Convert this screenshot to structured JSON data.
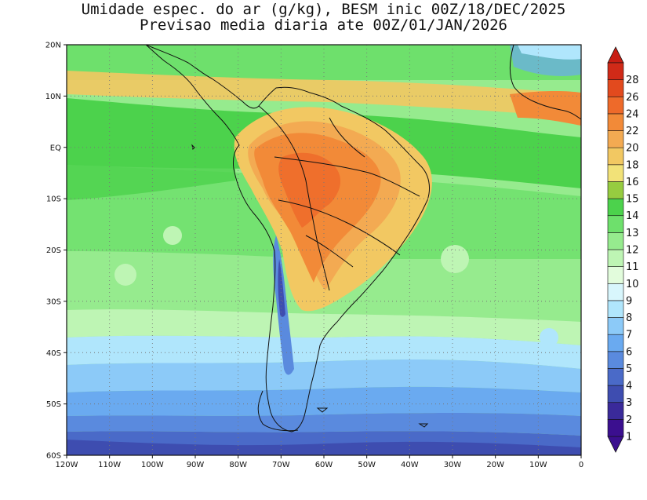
{
  "title": {
    "line1": "Umidade espec. do ar (g/kg), BESM inic 00Z/18/DEC/2025",
    "line2": "Previsao media diaria ate 00Z/01/JAN/2026"
  },
  "map": {
    "lat_range": [
      -60,
      20
    ],
    "lon_range": [
      -120,
      0
    ],
    "grid_style": "dotted",
    "lat_labels": [
      {
        "value": 20,
        "label": "20N"
      },
      {
        "value": 10,
        "label": "10N"
      },
      {
        "value": 0,
        "label": "EQ"
      },
      {
        "value": -10,
        "label": "10S"
      },
      {
        "value": -20,
        "label": "20S"
      },
      {
        "value": -30,
        "label": "30S"
      },
      {
        "value": -40,
        "label": "40S"
      },
      {
        "value": -50,
        "label": "50S"
      },
      {
        "value": -60,
        "label": "60S"
      }
    ],
    "lon_labels": [
      {
        "value": -120,
        "label": "120W"
      },
      {
        "value": -110,
        "label": "110W"
      },
      {
        "value": -100,
        "label": "100W"
      },
      {
        "value": -90,
        "label": "90W"
      },
      {
        "value": -80,
        "label": "80W"
      },
      {
        "value": -70,
        "label": "70W"
      },
      {
        "value": -60,
        "label": "60W"
      },
      {
        "value": -50,
        "label": "50W"
      },
      {
        "value": -40,
        "label": "40W"
      },
      {
        "value": -30,
        "label": "30W"
      },
      {
        "value": -20,
        "label": "20W"
      },
      {
        "value": -10,
        "label": "10W"
      },
      {
        "value": 0,
        "label": "0"
      }
    ]
  },
  "colorbar": {
    "levels": [
      {
        "label": "1",
        "color": "#3b0f8f"
      },
      {
        "label": "2",
        "color": "#3a2a9a"
      },
      {
        "label": "3",
        "color": "#3e4db0"
      },
      {
        "label": "4",
        "color": "#4a6ac8"
      },
      {
        "label": "5",
        "color": "#5a8ade"
      },
      {
        "label": "6",
        "color": "#6aaaf0"
      },
      {
        "label": "7",
        "color": "#8ccaf8"
      },
      {
        "label": "8",
        "color": "#b0e6fc"
      },
      {
        "label": "9",
        "color": "#d8f6fc"
      },
      {
        "label": "10",
        "color": "#e2fcdc"
      },
      {
        "label": "11",
        "color": "#bef5b4"
      },
      {
        "label": "12",
        "color": "#96eb8e"
      },
      {
        "label": "13",
        "color": "#6ee06c"
      },
      {
        "label": "14",
        "color": "#4cd24c"
      },
      {
        "label": "15",
        "color": "#96cc40"
      },
      {
        "label": "16",
        "color": "#f2e278"
      },
      {
        "label": "18",
        "color": "#f2c862"
      },
      {
        "label": "20",
        "color": "#f3aa52"
      },
      {
        "label": "22",
        "color": "#f28a38"
      },
      {
        "label": "24",
        "color": "#ee6a2a"
      },
      {
        "label": "26",
        "color": "#e24a1e"
      },
      {
        "label": "28",
        "color": "#d02a18"
      }
    ],
    "top_arrow_color": "#c81e14",
    "bottom_arrow_color": "#3b0f8f"
  }
}
